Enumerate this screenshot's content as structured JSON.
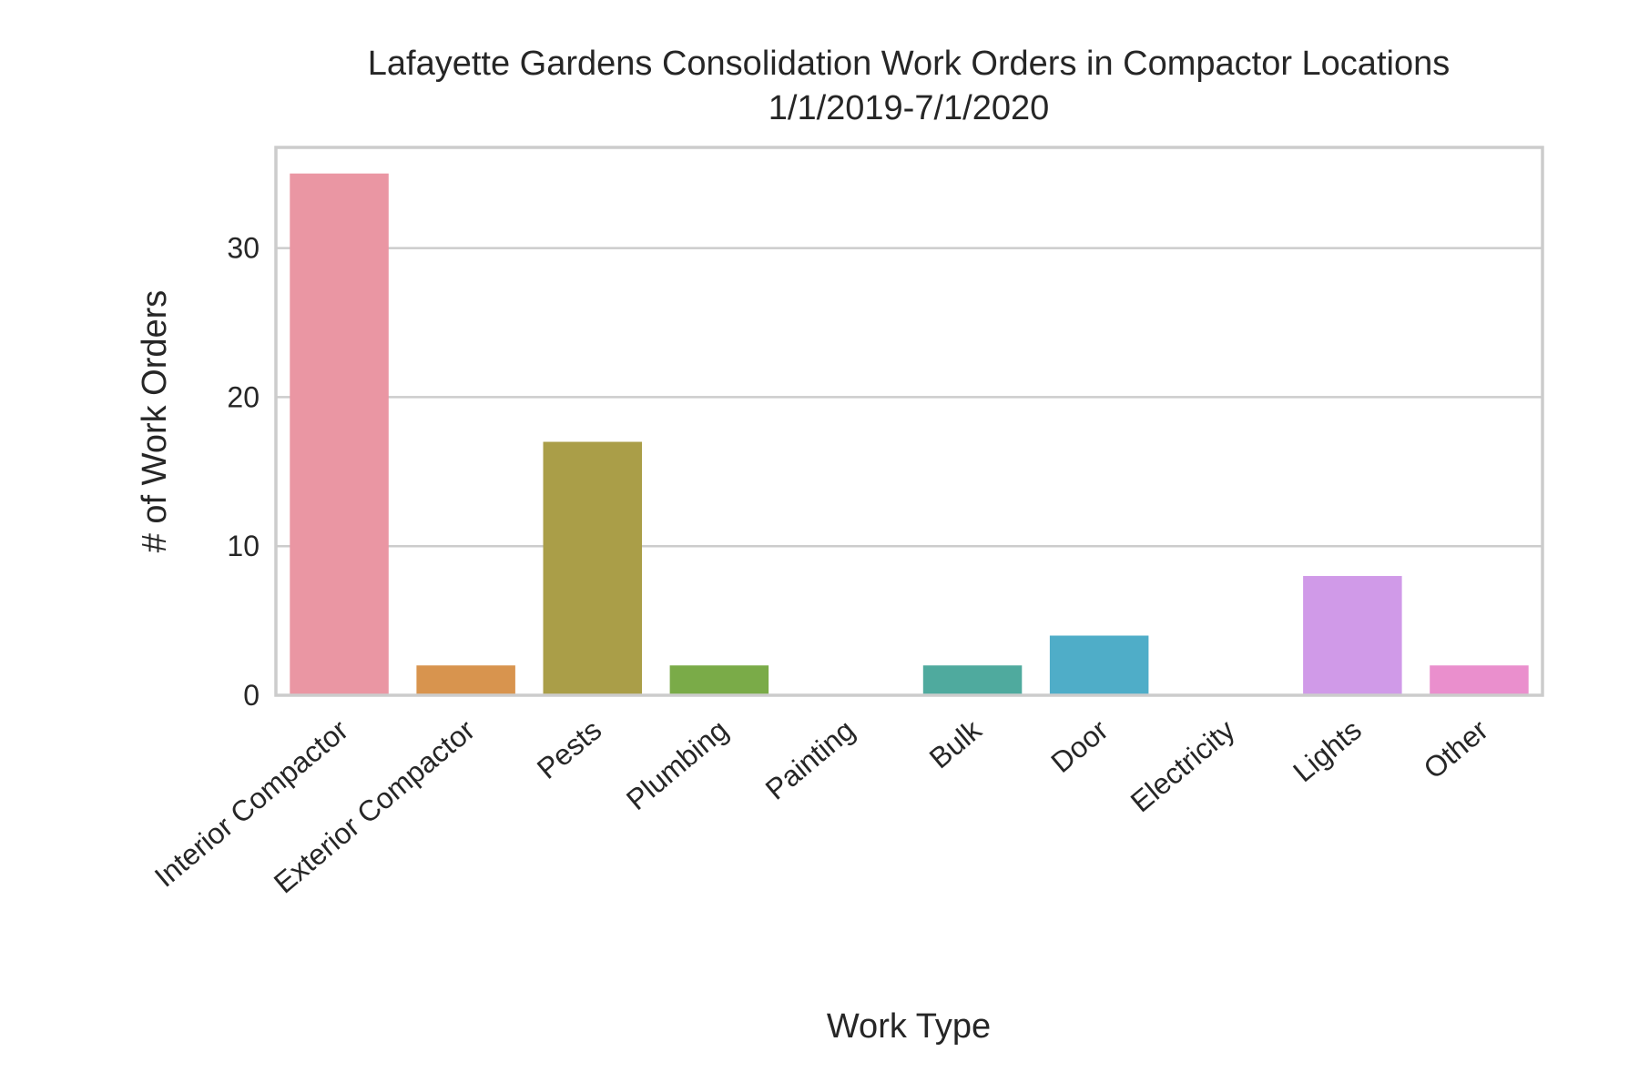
{
  "chart_data": {
    "type": "bar",
    "title": "Lafayette Gardens Consolidation Work Orders in Compactor Locations",
    "subtitle": "1/1/2019-7/1/2020",
    "xlabel": "Work Type",
    "ylabel": "# of Work Orders",
    "categories": [
      "Interior Compactor",
      "Exterior Compactor",
      "Pests",
      "Plumbing",
      "Painting",
      "Bulk",
      "Door",
      "Electricity",
      "Lights",
      "Other"
    ],
    "values": [
      35,
      2,
      17,
      2,
      0,
      2,
      4,
      0,
      8,
      2
    ],
    "colors": [
      "#ea96a3",
      "#d8944e",
      "#aa9e48",
      "#7aab48",
      "#4fae7e",
      "#4faa9e",
      "#4fadc8",
      "#96b1ea",
      "#d09ae8",
      "#ea8fcd"
    ],
    "ylim": [
      0,
      36.75
    ],
    "yticks": [
      0,
      10,
      20,
      30
    ],
    "grid": "y"
  }
}
